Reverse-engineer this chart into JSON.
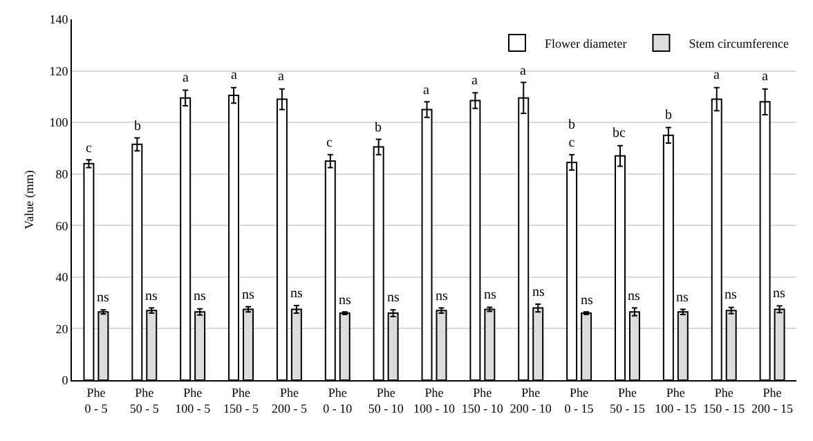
{
  "chart_data": {
    "type": "bar",
    "ylabel": "Value (mm)",
    "categories": [
      "Phe\n0 - 5",
      "Phe\n50 - 5",
      "Phe\n100 - 5",
      "Phe\n150 - 5",
      "Phe\n200 - 5",
      "Phe\n0 - 10",
      "Phe\n50 - 10",
      "Phe\n100 - 10",
      "Phe\n150 - 10",
      "Phe\n200 - 10",
      "Phe\n0 - 15",
      "Phe\n50 - 15",
      "Phe\n100 - 15",
      "Phe\n150 - 15",
      "Phe\n200 - 15"
    ],
    "series": [
      {
        "name": "Flower diameter",
        "color": "#ffffff",
        "values": [
          84,
          91.5,
          109.5,
          110.5,
          109,
          85,
          90.5,
          105,
          108.5,
          109.5,
          84.5,
          87,
          95,
          109,
          108
        ],
        "errors": [
          1.5,
          2.5,
          3,
          3,
          4,
          2.5,
          3,
          3,
          3,
          6,
          3,
          4,
          3,
          4.5,
          5
        ]
      },
      {
        "name": "Stem circumference",
        "color": "#dcdcdc",
        "values": [
          26.5,
          27,
          26.5,
          27.5,
          27.5,
          26,
          26,
          27,
          27.5,
          28,
          26,
          26.5,
          26.5,
          27,
          27.5
        ],
        "errors": [
          0.8,
          1,
          1.2,
          1,
          1.5,
          0.5,
          1.3,
          1,
          0.8,
          1.5,
          0.5,
          1.5,
          1,
          1.2,
          1.3
        ]
      }
    ],
    "ylim": [
      0,
      140
    ],
    "yticks": [
      0,
      20,
      40,
      60,
      80,
      100,
      120,
      140
    ],
    "grid": "y",
    "legend": "top right",
    "annotations": [
      {
        "text": "c",
        "x": "Phe\n0 - 5",
        "y": 85.5
      },
      {
        "text": "b",
        "x": "Phe\n50 - 5",
        "y": 94
      },
      {
        "text": "a",
        "x": "Phe\n100 - 5",
        "y": 112.5
      },
      {
        "text": "a",
        "x": "Phe\n150 - 5",
        "y": 113.5
      },
      {
        "text": "a",
        "x": "Phe\n200 - 5",
        "y": 113
      },
      {
        "text": "c",
        "x": "Phe\n0 - 10",
        "y": 87.5
      },
      {
        "text": "b",
        "x": "Phe\n50 - 10",
        "y": 93.5
      },
      {
        "text": "a",
        "x": "Phe\n100 - 10",
        "y": 108
      },
      {
        "text": "a",
        "x": "Phe\n150 - 10",
        "y": 111.5
      },
      {
        "text": "a",
        "x": "Phe\n200 - 10",
        "y": 115.5
      },
      {
        "text": "b\nc",
        "x": "Phe\n0 - 15",
        "y": 87.5
      },
      {
        "text": "bc",
        "x": "Phe\n50 - 15",
        "y": 91
      },
      {
        "text": "b",
        "x": "Phe\n100 - 15",
        "y": 98
      },
      {
        "text": "a",
        "x": "Phe\n150 - 15",
        "y": 113.5
      },
      {
        "text": "a",
        "x": "Phe\n200 - 15",
        "y": 113
      },
      {
        "text": "ns",
        "x": "Phe\n0 - 5",
        "y": 27.3
      },
      {
        "text": "ns",
        "x": "Phe\n50 - 5",
        "y": 28
      },
      {
        "text": "ns",
        "x": "Phe\n100 - 5",
        "y": 27.7
      },
      {
        "text": "ns",
        "x": "Phe\n150 - 5",
        "y": 28.5
      },
      {
        "text": "ns",
        "x": "Phe\n200 - 5",
        "y": 29
      },
      {
        "text": "ns",
        "x": "Phe\n0 - 10",
        "y": 26.5
      },
      {
        "text": "ns",
        "x": "Phe\n50 - 10",
        "y": 27.3
      },
      {
        "text": "ns",
        "x": "Phe\n100 - 10",
        "y": 28
      },
      {
        "text": "ns",
        "x": "Phe\n150 - 10",
        "y": 28.3
      },
      {
        "text": "ns",
        "x": "Phe\n200 - 10",
        "y": 29.5
      },
      {
        "text": "ns",
        "x": "Phe\n0 - 15",
        "y": 26.5
      },
      {
        "text": "ns",
        "x": "Phe\n50 - 15",
        "y": 28
      },
      {
        "text": "ns",
        "x": "Phe\n100 - 15",
        "y": 27.5
      },
      {
        "text": "ns",
        "x": "Phe\n150 - 15",
        "y": 28.2
      },
      {
        "text": "ns",
        "x": "Phe\n200 - 15",
        "y": 28.8
      }
    ]
  }
}
